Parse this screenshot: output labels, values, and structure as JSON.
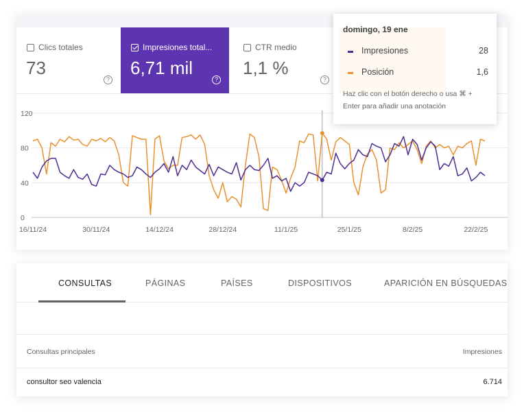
{
  "metrics": [
    {
      "label": "Clics totales",
      "value": "73",
      "selected": false
    },
    {
      "label": "Impresiones total...",
      "value": "6,71 mil",
      "selected": true
    },
    {
      "label": "CTR medio",
      "value": "1,1 %",
      "selected": false
    }
  ],
  "help_glyph": "?",
  "tooltip": {
    "date": "domingo, 19 ene",
    "rows": [
      {
        "name": "Impresiones",
        "value": "28",
        "color": "#4c2c92"
      },
      {
        "name": "Posición",
        "value": "1,6",
        "color": "#e8912d"
      }
    ],
    "note": "Haz clic con el botón derecho o usa ⌘ + Enter para añadir una anotación"
  },
  "chart_data": {
    "type": "line",
    "y_ticks": [
      "120",
      "80",
      "40",
      "0"
    ],
    "ylim": [
      0,
      120
    ],
    "x_tick_labels": [
      "16/11/24",
      "30/11/24",
      "14/12/24",
      "28/12/24",
      "11/1/25",
      "25/1/25",
      "8/2/25",
      "22/2/25"
    ],
    "x_range": [
      "2024-11-16",
      "2025-03-01"
    ],
    "highlight_date": "2025-01-19",
    "series": [
      {
        "name": "Impresiones",
        "color": "#4c2c92",
        "values": [
          52,
          45,
          58,
          65,
          68,
          68,
          52,
          48,
          45,
          55,
          46,
          44,
          50,
          38,
          36,
          50,
          49,
          60,
          55,
          52,
          50,
          46,
          48,
          58,
          55,
          50,
          46,
          52,
          56,
          62,
          52,
          70,
          48,
          60,
          55,
          66,
          58,
          54,
          50,
          61,
          48,
          58,
          55,
          52,
          50,
          63,
          43,
          55,
          60,
          55,
          54,
          60,
          68,
          45,
          48,
          42,
          45,
          30,
          40,
          36,
          40,
          52,
          50,
          48,
          43,
          52,
          50,
          74,
          62,
          56,
          62,
          66,
          78,
          72,
          70,
          85,
          82,
          80,
          64,
          72,
          85,
          82,
          93,
          72,
          90,
          84,
          66,
          80,
          87,
          82,
          55,
          62,
          59,
          70,
          48,
          50,
          57,
          42,
          46,
          52,
          48
        ]
      },
      {
        "name": "Posición",
        "color": "#e8912d",
        "values": [
          88,
          90,
          80,
          50,
          86,
          82,
          90,
          87,
          93,
          89,
          90,
          84,
          82,
          90,
          88,
          91,
          87,
          92,
          88,
          72,
          40,
          36,
          94,
          92,
          90,
          90,
          3,
          90,
          94,
          65,
          56,
          60,
          60,
          92,
          93,
          95,
          90,
          95,
          84,
          48,
          32,
          22,
          40,
          18,
          24,
          21,
          12,
          60,
          96,
          92,
          70,
          10,
          8,
          58,
          55,
          43,
          28,
          45,
          58,
          88,
          86,
          96,
          95,
          42,
          97,
          90,
          66,
          87,
          92,
          88,
          84,
          40,
          26,
          58,
          73,
          78,
          66,
          28,
          32,
          80,
          78,
          86,
          80,
          84,
          88,
          78,
          62,
          82,
          88,
          80,
          84,
          80,
          82,
          72,
          82,
          80,
          85,
          88,
          60,
          90,
          88
        ]
      }
    ]
  },
  "tabs": [
    {
      "label": "CONSULTAS",
      "active": true
    },
    {
      "label": "PÁGINAS",
      "active": false
    },
    {
      "label": "PAÍSES",
      "active": false
    },
    {
      "label": "DISPOSITIVOS",
      "active": false
    },
    {
      "label": "APARICIÓN EN BÚSQUEDAS",
      "active": false
    }
  ],
  "table": {
    "header_left": "Consultas principales",
    "header_right": "Impresiones",
    "rows": [
      {
        "query": "consultor seo valencia",
        "impressions": "6.714"
      }
    ]
  }
}
